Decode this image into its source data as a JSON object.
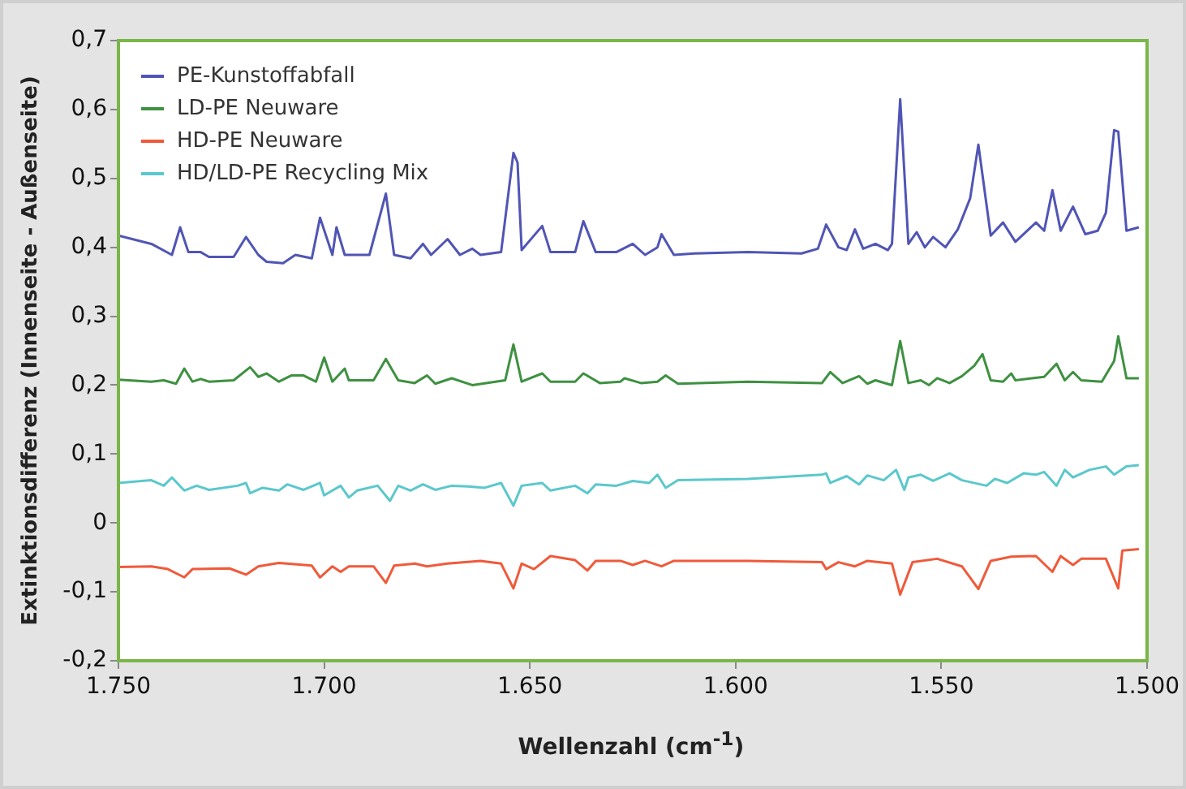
{
  "chart_data": {
    "type": "line",
    "xlabel": "Wellenzahl (cm$^{-1}$)",
    "ylabel": "Extinktionsdifferenz (Innenseite - Außenseite)",
    "xlim": [
      1750,
      1500
    ],
    "xticks": [
      {
        "value": 1750,
        "label": "1.750"
      },
      {
        "value": 1700,
        "label": "1.700"
      },
      {
        "value": 1650,
        "label": "1.650"
      },
      {
        "value": 1600,
        "label": "1.600"
      },
      {
        "value": 1550,
        "label": "1.550"
      },
      {
        "value": 1500,
        "label": "1.500"
      }
    ],
    "ylim": [
      -0.2,
      0.7
    ],
    "yticks": [
      {
        "value": -0.2,
        "label": "-0,2"
      },
      {
        "value": -0.1,
        "label": "-0,1"
      },
      0,
      {
        "value": 0.1,
        "label": "0,1"
      },
      {
        "value": 0.2,
        "label": "0,2"
      },
      {
        "value": 0.3,
        "label": "0,3"
      },
      {
        "value": 0.4,
        "label": "0,4"
      },
      {
        "value": 0.5,
        "label": "0,5"
      },
      {
        "value": 0.6,
        "label": "0,6"
      },
      {
        "value": 0.7,
        "label": "0,7"
      }
    ],
    "legend": "top left",
    "marker": "none",
    "line_style": "solid",
    "series": [
      {
        "name": "PE-Kunstoffabfall",
        "color": "#5055b5",
        "x": [
          1750,
          1742,
          1737,
          1735,
          1733,
          1730,
          1728,
          1722,
          1719,
          1716,
          1714,
          1710,
          1707,
          1703,
          1701,
          1698,
          1697,
          1695,
          1689,
          1685,
          1683,
          1679,
          1676,
          1674,
          1670,
          1667,
          1664,
          1662,
          1657,
          1654,
          1653,
          1652,
          1647,
          1645,
          1639,
          1637,
          1634,
          1629,
          1625,
          1622,
          1619,
          1618,
          1615,
          1610,
          1597,
          1584,
          1580,
          1578,
          1575,
          1573,
          1571,
          1569,
          1566,
          1563,
          1562,
          1560,
          1558,
          1556,
          1554,
          1552,
          1549,
          1546,
          1543,
          1541,
          1538,
          1535,
          1532,
          1527,
          1525,
          1523,
          1521,
          1518,
          1515,
          1512,
          1510,
          1508,
          1507,
          1505,
          1502
        ],
        "values": [
          0.417,
          0.405,
          0.389,
          0.429,
          0.393,
          0.393,
          0.386,
          0.386,
          0.415,
          0.389,
          0.379,
          0.377,
          0.389,
          0.384,
          0.443,
          0.389,
          0.429,
          0.389,
          0.389,
          0.478,
          0.389,
          0.384,
          0.405,
          0.389,
          0.412,
          0.389,
          0.398,
          0.389,
          0.393,
          0.537,
          0.523,
          0.396,
          0.431,
          0.393,
          0.393,
          0.438,
          0.393,
          0.393,
          0.405,
          0.389,
          0.4,
          0.419,
          0.389,
          0.391,
          0.393,
          0.391,
          0.398,
          0.433,
          0.4,
          0.396,
          0.426,
          0.398,
          0.405,
          0.396,
          0.405,
          0.615,
          0.405,
          0.422,
          0.4,
          0.415,
          0.4,
          0.426,
          0.471,
          0.549,
          0.417,
          0.436,
          0.408,
          0.436,
          0.424,
          0.483,
          0.424,
          0.459,
          0.419,
          0.424,
          0.45,
          0.57,
          0.568,
          0.424,
          0.429
        ]
      },
      {
        "name": "LD-PE Neuware",
        "color": "#3e9141",
        "x": [
          1750,
          1742,
          1739,
          1736,
          1734,
          1732,
          1730,
          1728,
          1722,
          1718,
          1716,
          1714,
          1711,
          1708,
          1705,
          1702,
          1700,
          1698,
          1695,
          1694,
          1688,
          1685,
          1682,
          1678,
          1675,
          1673,
          1669,
          1664,
          1656,
          1654,
          1652,
          1647,
          1645,
          1639,
          1637,
          1633,
          1628,
          1627,
          1623,
          1619,
          1617,
          1614,
          1597,
          1579,
          1577,
          1574,
          1570,
          1568,
          1566,
          1562,
          1560,
          1558,
          1555,
          1553,
          1551,
          1548,
          1545,
          1542,
          1540,
          1538,
          1535,
          1533,
          1532,
          1528,
          1525,
          1522,
          1520,
          1518,
          1516,
          1511,
          1508,
          1507,
          1505,
          1502
        ],
        "values": [
          0.208,
          0.205,
          0.207,
          0.202,
          0.224,
          0.205,
          0.209,
          0.205,
          0.207,
          0.226,
          0.212,
          0.217,
          0.205,
          0.214,
          0.214,
          0.205,
          0.24,
          0.205,
          0.224,
          0.207,
          0.207,
          0.238,
          0.207,
          0.203,
          0.214,
          0.202,
          0.21,
          0.2,
          0.207,
          0.259,
          0.205,
          0.217,
          0.205,
          0.205,
          0.217,
          0.203,
          0.205,
          0.21,
          0.203,
          0.205,
          0.214,
          0.202,
          0.205,
          0.203,
          0.219,
          0.203,
          0.213,
          0.202,
          0.207,
          0.2,
          0.264,
          0.203,
          0.207,
          0.2,
          0.21,
          0.203,
          0.213,
          0.228,
          0.245,
          0.207,
          0.205,
          0.217,
          0.207,
          0.21,
          0.212,
          0.231,
          0.207,
          0.219,
          0.207,
          0.205,
          0.235,
          0.271,
          0.21,
          0.21
        ]
      },
      {
        "name": "HD-PE Neuware",
        "color": "#f05a3a",
        "x": [
          1750,
          1742,
          1738,
          1734,
          1732,
          1723,
          1719,
          1716,
          1711,
          1703,
          1701,
          1698,
          1696,
          1694,
          1688,
          1685,
          1683,
          1678,
          1675,
          1670,
          1662,
          1657,
          1654,
          1652,
          1649,
          1645,
          1639,
          1636,
          1634,
          1628,
          1625,
          1622,
          1618,
          1615,
          1597,
          1579,
          1578,
          1575,
          1571,
          1568,
          1562,
          1560,
          1557,
          1551,
          1545,
          1541,
          1538,
          1533,
          1527,
          1523,
          1521,
          1518,
          1516,
          1510,
          1507,
          1506,
          1502
        ],
        "values": [
          -0.064,
          -0.063,
          -0.067,
          -0.079,
          -0.067,
          -0.066,
          -0.075,
          -0.063,
          -0.058,
          -0.062,
          -0.079,
          -0.063,
          -0.071,
          -0.063,
          -0.063,
          -0.087,
          -0.062,
          -0.059,
          -0.063,
          -0.059,
          -0.055,
          -0.059,
          -0.095,
          -0.059,
          -0.067,
          -0.048,
          -0.054,
          -0.069,
          -0.055,
          -0.055,
          -0.061,
          -0.055,
          -0.063,
          -0.055,
          -0.055,
          -0.057,
          -0.067,
          -0.057,
          -0.063,
          -0.055,
          -0.059,
          -0.104,
          -0.057,
          -0.052,
          -0.063,
          -0.096,
          -0.055,
          -0.049,
          -0.048,
          -0.071,
          -0.048,
          -0.061,
          -0.052,
          -0.052,
          -0.095,
          -0.04,
          -0.038
        ]
      },
      {
        "name": "HD/LD-PE Recycling Mix",
        "color": "#5bc8cc",
        "x": [
          1750,
          1742,
          1739,
          1737,
          1734,
          1731,
          1728,
          1721,
          1719,
          1718,
          1715,
          1711,
          1709,
          1705,
          1701,
          1700,
          1696,
          1694,
          1692,
          1687,
          1684,
          1682,
          1679,
          1676,
          1673,
          1669,
          1665,
          1661,
          1657,
          1654,
          1652,
          1647,
          1645,
          1639,
          1636,
          1634,
          1629,
          1625,
          1621,
          1619,
          1617,
          1614,
          1597,
          1579,
          1578,
          1577,
          1573,
          1570,
          1568,
          1564,
          1561,
          1559,
          1558,
          1555,
          1552,
          1548,
          1545,
          1539,
          1537,
          1534,
          1530,
          1527,
          1525,
          1522,
          1520,
          1518,
          1514,
          1510,
          1508,
          1505,
          1502
        ],
        "values": [
          0.058,
          0.062,
          0.054,
          0.066,
          0.047,
          0.054,
          0.048,
          0.054,
          0.058,
          0.043,
          0.051,
          0.047,
          0.056,
          0.048,
          0.058,
          0.04,
          0.054,
          0.037,
          0.047,
          0.054,
          0.032,
          0.054,
          0.047,
          0.056,
          0.048,
          0.054,
          0.053,
          0.051,
          0.058,
          0.025,
          0.054,
          0.058,
          0.047,
          0.054,
          0.043,
          0.056,
          0.054,
          0.061,
          0.058,
          0.07,
          0.051,
          0.062,
          0.064,
          0.07,
          0.072,
          0.058,
          0.068,
          0.056,
          0.069,
          0.062,
          0.077,
          0.048,
          0.066,
          0.07,
          0.061,
          0.072,
          0.062,
          0.054,
          0.064,
          0.058,
          0.072,
          0.07,
          0.074,
          0.054,
          0.077,
          0.066,
          0.077,
          0.082,
          0.07,
          0.082,
          0.084
        ]
      }
    ]
  }
}
